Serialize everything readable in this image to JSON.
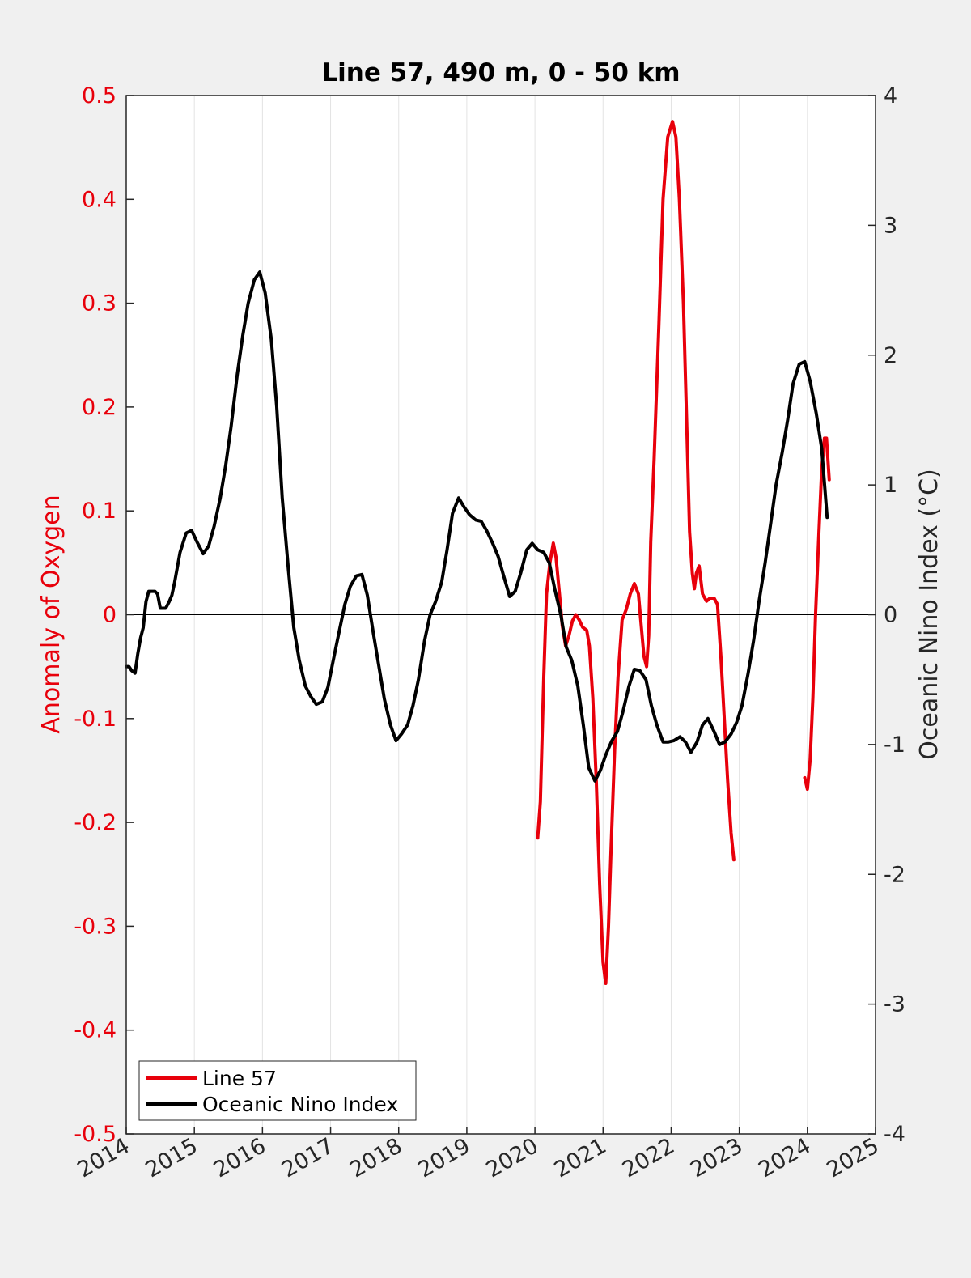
{
  "chart_data": {
    "type": "line",
    "title": "Line 57, 490 m, 0 - 50 km",
    "xlabel": "",
    "ylabel_left": "Anomaly of Oxygen",
    "ylabel_right": "Oceanic Nino Index (°C)",
    "xlim": [
      2014,
      2025
    ],
    "ylim_left": [
      -0.5,
      0.5
    ],
    "ylim_right": [
      -4,
      4
    ],
    "x_ticks": [
      "2014",
      "2015",
      "2016",
      "2017",
      "2018",
      "2019",
      "2020",
      "2021",
      "2022",
      "2023",
      "2024",
      "2025"
    ],
    "y_left_ticks": [
      "0.5",
      "0.4",
      "0.3",
      "0.2",
      "0.1",
      "0",
      "-0.1",
      "-0.2",
      "-0.3",
      "-0.4",
      "-0.5"
    ],
    "y_right_ticks": [
      "4",
      "3",
      "2",
      "1",
      "0",
      "-1",
      "-2",
      "-3",
      "-4"
    ],
    "grid": "vertical",
    "zero_line": true,
    "legend": {
      "placement": "bottom-left",
      "entries": [
        {
          "label": "Line 57",
          "color": "#e8000b"
        },
        {
          "label": "Oceanic Nino Index",
          "color": "#000000"
        }
      ]
    },
    "colors": {
      "left_axis": "#e8000b",
      "right_axis": "#262626"
    },
    "series": [
      {
        "name": "Line 57",
        "axis": "left",
        "color": "#e8000b",
        "segments": [
          [
            [
              2020.04,
              -0.215
            ],
            [
              2020.08,
              -0.18
            ],
            [
              2020.13,
              -0.06
            ],
            [
              2020.17,
              0.02
            ],
            [
              2020.22,
              0.05
            ],
            [
              2020.27,
              0.069
            ],
            [
              2020.31,
              0.055
            ],
            [
              2020.36,
              0.02
            ],
            [
              2020.4,
              -0.01
            ],
            [
              2020.45,
              -0.03
            ],
            [
              2020.5,
              -0.02
            ],
            [
              2020.55,
              -0.006
            ],
            [
              2020.6,
              0.0
            ],
            [
              2020.65,
              -0.005
            ],
            [
              2020.7,
              -0.012
            ],
            [
              2020.76,
              -0.015
            ],
            [
              2020.8,
              -0.03
            ],
            [
              2020.85,
              -0.08
            ],
            [
              2020.9,
              -0.16
            ],
            [
              2020.95,
              -0.26
            ],
            [
              2021.0,
              -0.335
            ],
            [
              2021.04,
              -0.355
            ],
            [
              2021.08,
              -0.3
            ],
            [
              2021.12,
              -0.22
            ],
            [
              2021.17,
              -0.13
            ],
            [
              2021.22,
              -0.06
            ],
            [
              2021.28,
              -0.005
            ],
            [
              2021.34,
              0.005
            ],
            [
              2021.4,
              0.02
            ],
            [
              2021.46,
              0.03
            ],
            [
              2021.52,
              0.02
            ],
            [
              2021.56,
              -0.01
            ],
            [
              2021.6,
              -0.04
            ],
            [
              2021.64,
              -0.05
            ],
            [
              2021.67,
              -0.02
            ],
            [
              2021.7,
              0.07
            ],
            [
              2021.75,
              0.15
            ],
            [
              2021.82,
              0.28
            ],
            [
              2021.88,
              0.4
            ],
            [
              2021.95,
              0.46
            ],
            [
              2022.02,
              0.475
            ],
            [
              2022.07,
              0.46
            ],
            [
              2022.12,
              0.4
            ],
            [
              2022.18,
              0.3
            ],
            [
              2022.23,
              0.18
            ],
            [
              2022.27,
              0.08
            ],
            [
              2022.31,
              0.04
            ],
            [
              2022.34,
              0.025
            ],
            [
              2022.37,
              0.04
            ],
            [
              2022.41,
              0.047
            ],
            [
              2022.46,
              0.02
            ],
            [
              2022.52,
              0.013
            ],
            [
              2022.57,
              0.016
            ],
            [
              2022.63,
              0.016
            ],
            [
              2022.68,
              0.01
            ],
            [
              2022.73,
              -0.04
            ],
            [
              2022.78,
              -0.1
            ],
            [
              2022.83,
              -0.16
            ],
            [
              2022.88,
              -0.21
            ],
            [
              2022.92,
              -0.236
            ]
          ],
          [
            [
              2023.96,
              -0.157
            ],
            [
              2024.0,
              -0.168
            ],
            [
              2024.04,
              -0.14
            ],
            [
              2024.08,
              -0.08
            ],
            [
              2024.12,
              0.0
            ],
            [
              2024.17,
              0.08
            ],
            [
              2024.21,
              0.14
            ],
            [
              2024.25,
              0.17
            ],
            [
              2024.28,
              0.17
            ],
            [
              2024.32,
              0.13
            ]
          ]
        ]
      },
      {
        "name": "Oceanic Nino Index",
        "axis": "right",
        "color": "#000000",
        "points": [
          [
            2014.0,
            -0.4
          ],
          [
            2014.04,
            -0.4
          ],
          [
            2014.08,
            -0.43
          ],
          [
            2014.13,
            -0.45
          ],
          [
            2014.17,
            -0.3
          ],
          [
            2014.21,
            -0.18
          ],
          [
            2014.25,
            -0.1
          ],
          [
            2014.29,
            0.1
          ],
          [
            2014.33,
            0.18
          ],
          [
            2014.38,
            0.18
          ],
          [
            2014.42,
            0.18
          ],
          [
            2014.46,
            0.16
          ],
          [
            2014.5,
            0.05
          ],
          [
            2014.54,
            0.05
          ],
          [
            2014.58,
            0.05
          ],
          [
            2014.63,
            0.1
          ],
          [
            2014.67,
            0.15
          ],
          [
            2014.71,
            0.25
          ],
          [
            2014.79,
            0.48
          ],
          [
            2014.88,
            0.63
          ],
          [
            2014.96,
            0.65
          ],
          [
            2015.04,
            0.56
          ],
          [
            2015.13,
            0.47
          ],
          [
            2015.21,
            0.53
          ],
          [
            2015.29,
            0.68
          ],
          [
            2015.38,
            0.9
          ],
          [
            2015.46,
            1.15
          ],
          [
            2015.54,
            1.45
          ],
          [
            2015.63,
            1.85
          ],
          [
            2015.71,
            2.15
          ],
          [
            2015.79,
            2.4
          ],
          [
            2015.88,
            2.58
          ],
          [
            2015.96,
            2.64
          ],
          [
            2016.04,
            2.48
          ],
          [
            2016.13,
            2.12
          ],
          [
            2016.21,
            1.6
          ],
          [
            2016.29,
            0.9
          ],
          [
            2016.38,
            0.35
          ],
          [
            2016.46,
            -0.1
          ],
          [
            2016.54,
            -0.35
          ],
          [
            2016.63,
            -0.55
          ],
          [
            2016.71,
            -0.63
          ],
          [
            2016.79,
            -0.69
          ],
          [
            2016.88,
            -0.67
          ],
          [
            2016.96,
            -0.56
          ],
          [
            2017.04,
            -0.35
          ],
          [
            2017.13,
            -0.12
          ],
          [
            2017.21,
            0.08
          ],
          [
            2017.29,
            0.22
          ],
          [
            2017.38,
            0.3
          ],
          [
            2017.46,
            0.31
          ],
          [
            2017.54,
            0.15
          ],
          [
            2017.63,
            -0.15
          ],
          [
            2017.71,
            -0.4
          ],
          [
            2017.79,
            -0.65
          ],
          [
            2017.88,
            -0.85
          ],
          [
            2017.96,
            -0.97
          ],
          [
            2018.04,
            -0.92
          ],
          [
            2018.13,
            -0.85
          ],
          [
            2018.21,
            -0.7
          ],
          [
            2018.29,
            -0.5
          ],
          [
            2018.38,
            -0.2
          ],
          [
            2018.46,
            0.0
          ],
          [
            2018.54,
            0.1
          ],
          [
            2018.63,
            0.25
          ],
          [
            2018.71,
            0.5
          ],
          [
            2018.79,
            0.78
          ],
          [
            2018.88,
            0.9
          ],
          [
            2018.96,
            0.83
          ],
          [
            2019.04,
            0.77
          ],
          [
            2019.13,
            0.73
          ],
          [
            2019.21,
            0.72
          ],
          [
            2019.29,
            0.65
          ],
          [
            2019.38,
            0.55
          ],
          [
            2019.46,
            0.45
          ],
          [
            2019.54,
            0.3
          ],
          [
            2019.63,
            0.14
          ],
          [
            2019.71,
            0.18
          ],
          [
            2019.79,
            0.32
          ],
          [
            2019.88,
            0.5
          ],
          [
            2019.96,
            0.55
          ],
          [
            2020.04,
            0.5
          ],
          [
            2020.13,
            0.48
          ],
          [
            2020.21,
            0.4
          ],
          [
            2020.29,
            0.2
          ],
          [
            2020.38,
            0.0
          ],
          [
            2020.46,
            -0.25
          ],
          [
            2020.54,
            -0.35
          ],
          [
            2020.63,
            -0.55
          ],
          [
            2020.71,
            -0.85
          ],
          [
            2020.79,
            -1.18
          ],
          [
            2020.88,
            -1.28
          ],
          [
            2020.96,
            -1.2
          ],
          [
            2021.04,
            -1.08
          ],
          [
            2021.13,
            -0.97
          ],
          [
            2021.21,
            -0.9
          ],
          [
            2021.29,
            -0.75
          ],
          [
            2021.38,
            -0.55
          ],
          [
            2021.46,
            -0.42
          ],
          [
            2021.54,
            -0.43
          ],
          [
            2021.63,
            -0.5
          ],
          [
            2021.71,
            -0.7
          ],
          [
            2021.79,
            -0.85
          ],
          [
            2021.88,
            -0.98
          ],
          [
            2021.96,
            -0.98
          ],
          [
            2022.04,
            -0.97
          ],
          [
            2022.13,
            -0.94
          ],
          [
            2022.21,
            -0.98
          ],
          [
            2022.29,
            -1.06
          ],
          [
            2022.38,
            -0.98
          ],
          [
            2022.46,
            -0.85
          ],
          [
            2022.54,
            -0.8
          ],
          [
            2022.63,
            -0.9
          ],
          [
            2022.71,
            -1.0
          ],
          [
            2022.79,
            -0.98
          ],
          [
            2022.88,
            -0.92
          ],
          [
            2022.96,
            -0.83
          ],
          [
            2023.04,
            -0.7
          ],
          [
            2023.13,
            -0.45
          ],
          [
            2023.21,
            -0.2
          ],
          [
            2023.29,
            0.1
          ],
          [
            2023.38,
            0.4
          ],
          [
            2023.46,
            0.7
          ],
          [
            2023.54,
            1.0
          ],
          [
            2023.63,
            1.25
          ],
          [
            2023.71,
            1.5
          ],
          [
            2023.79,
            1.78
          ],
          [
            2023.88,
            1.93
          ],
          [
            2023.96,
            1.95
          ],
          [
            2024.04,
            1.8
          ],
          [
            2024.13,
            1.55
          ],
          [
            2024.21,
            1.28
          ],
          [
            2024.29,
            0.75
          ]
        ]
      }
    ]
  }
}
